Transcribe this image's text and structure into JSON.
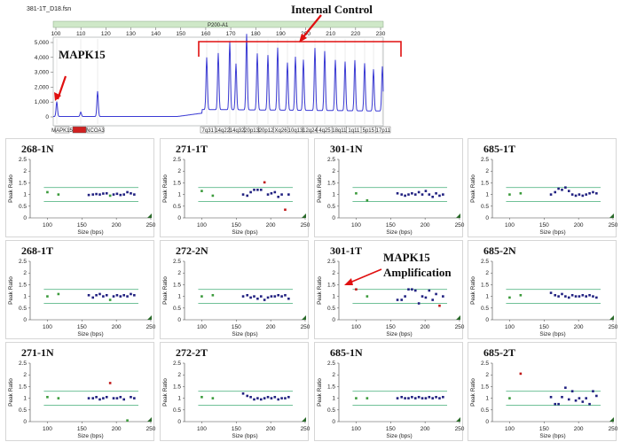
{
  "electropherogram": {
    "file_label": "381-1T_D18.fsn",
    "ruler_label": "P200-A1",
    "ruler_ticks": [
      "100",
      "110",
      "120",
      "130",
      "140",
      "150",
      "160",
      "170",
      "180",
      "190",
      "200",
      "210",
      "220",
      "230"
    ],
    "y_ticks": [
      "5,000",
      "4,000",
      "3,000",
      "2,000",
      "1,000",
      "0"
    ],
    "y_values": [
      5000,
      4000,
      3000,
      2000,
      1000,
      0
    ],
    "probe_labels_left": [
      "MAPK15",
      "",
      "NCOA3"
    ],
    "probe_labels_right": [
      "7q31",
      "14q22",
      "14q32",
      "20p13",
      "20p12",
      "Xq26",
      "10q13",
      "12q24",
      "4q25",
      "18q11",
      "1q11",
      "5p15",
      "17p11"
    ],
    "annotation_mapk15": "MAPK15",
    "annotation_internal": "Internal Control",
    "colors": {
      "trace": "#3b3bd4",
      "arrow": "#e01010",
      "ruler": "#cfe8c8",
      "probe_red": "#d02020"
    }
  },
  "mapk15_amplification_label_1": "MAPK15",
  "mapk15_amplification_label_2": "Amplification",
  "chart_data": [
    {
      "type": "scatter",
      "title": "268-1N",
      "xlabel": "Size (bps)",
      "ylabel": "Peak Ratio",
      "xlim": [
        75,
        250
      ],
      "ylim": [
        0,
        2.5
      ],
      "x_ticks": [
        "100",
        "150",
        "200",
        "250"
      ],
      "y_ticks": [
        "0",
        "0.5",
        "1",
        "1.5",
        "2",
        "2.5"
      ],
      "ref_lines": [
        0.7,
        1.3
      ],
      "points": [
        [
          100,
          1.1
        ],
        [
          116,
          1.0
        ],
        [
          160,
          0.98
        ],
        [
          166,
          1.0
        ],
        [
          171,
          1.02
        ],
        [
          176,
          1.0
        ],
        [
          181,
          1.04
        ],
        [
          186,
          1.05
        ],
        [
          191,
          0.95
        ],
        [
          196,
          1.0
        ],
        [
          201,
          1.03
        ],
        [
          206,
          0.98
        ],
        [
          211,
          1.0
        ],
        [
          216,
          1.1
        ],
        [
          221,
          1.05
        ],
        [
          226,
          1.0
        ]
      ],
      "red_points": [],
      "green_points": [
        [
          100,
          1.1
        ],
        [
          116,
          1.0
        ],
        [
          191,
          0.95
        ]
      ]
    },
    {
      "type": "scatter",
      "title": "271-1T",
      "xlabel": "Size (bps)",
      "ylabel": "Peak Ratio",
      "xlim": [
        75,
        250
      ],
      "ylim": [
        0,
        2.5
      ],
      "x_ticks": [
        "100",
        "150",
        "200",
        "250"
      ],
      "y_ticks": [
        "0",
        "0.5",
        "1",
        "1.5",
        "2",
        "2.5"
      ],
      "ref_lines": [
        0.7,
        1.3
      ],
      "points": [
        [
          100,
          1.15
        ],
        [
          116,
          0.95
        ],
        [
          160,
          1.0
        ],
        [
          166,
          0.95
        ],
        [
          171,
          1.1
        ],
        [
          176,
          1.2
        ],
        [
          181,
          1.2
        ],
        [
          186,
          1.2
        ],
        [
          191,
          1.52
        ],
        [
          196,
          1.0
        ],
        [
          201,
          1.05
        ],
        [
          206,
          1.1
        ],
        [
          211,
          0.9
        ],
        [
          216,
          1.0
        ],
        [
          221,
          0.35
        ],
        [
          226,
          1.0
        ]
      ],
      "red_points": [
        [
          191,
          1.52
        ],
        [
          221,
          0.35
        ]
      ],
      "green_points": [
        [
          100,
          1.15
        ],
        [
          116,
          0.95
        ]
      ]
    },
    {
      "type": "scatter",
      "title": "301-1N",
      "xlabel": "Size (bps)",
      "ylabel": "Peak Ratio",
      "xlim": [
        75,
        250
      ],
      "ylim": [
        0,
        2.5
      ],
      "x_ticks": [
        "100",
        "150",
        "200",
        "250"
      ],
      "y_ticks": [
        "0",
        "0.5",
        "1",
        "1.5",
        "2",
        "2.5"
      ],
      "ref_lines": [
        0.7,
        1.3
      ],
      "points": [
        [
          100,
          1.05
        ],
        [
          116,
          0.75
        ],
        [
          160,
          1.05
        ],
        [
          166,
          1.0
        ],
        [
          171,
          0.95
        ],
        [
          176,
          1.0
        ],
        [
          181,
          1.05
        ],
        [
          186,
          1.0
        ],
        [
          191,
          1.1
        ],
        [
          196,
          1.0
        ],
        [
          201,
          1.15
        ],
        [
          206,
          1.0
        ],
        [
          211,
          0.9
        ],
        [
          216,
          1.05
        ],
        [
          221,
          0.95
        ],
        [
          226,
          1.0
        ]
      ],
      "red_points": [],
      "green_points": [
        [
          100,
          1.05
        ],
        [
          116,
          0.75
        ]
      ]
    },
    {
      "type": "scatter",
      "title": "685-1T",
      "xlabel": "Size (bps)",
      "ylabel": "Peak Ratio",
      "xlim": [
        75,
        250
      ],
      "ylim": [
        0,
        2.5
      ],
      "x_ticks": [
        "100",
        "150",
        "200",
        "250"
      ],
      "y_ticks": [
        "0",
        "0.5",
        "1",
        "1.5",
        "2",
        "2.5"
      ],
      "ref_lines": [
        0.7,
        1.3
      ],
      "points": [
        [
          100,
          1.0
        ],
        [
          116,
          1.05
        ],
        [
          160,
          1.0
        ],
        [
          166,
          1.1
        ],
        [
          171,
          1.25
        ],
        [
          176,
          1.2
        ],
        [
          181,
          1.3
        ],
        [
          186,
          1.15
        ],
        [
          191,
          1.0
        ],
        [
          196,
          0.95
        ],
        [
          201,
          1.0
        ],
        [
          206,
          0.95
        ],
        [
          211,
          1.0
        ],
        [
          216,
          1.05
        ],
        [
          221,
          1.1
        ],
        [
          226,
          1.05
        ]
      ],
      "red_points": [],
      "green_points": [
        [
          100,
          1.0
        ],
        [
          116,
          1.05
        ]
      ]
    },
    {
      "type": "scatter",
      "title": "268-1T",
      "xlabel": "Size (bps)",
      "ylabel": "Peak Ratio",
      "xlim": [
        75,
        250
      ],
      "ylim": [
        0,
        2.5
      ],
      "x_ticks": [
        "100",
        "150",
        "200",
        "250"
      ],
      "y_ticks": [
        "0",
        "0.5",
        "1",
        "1.5",
        "2",
        "2.5"
      ],
      "ref_lines": [
        0.7,
        1.3
      ],
      "points": [
        [
          100,
          1.0
        ],
        [
          116,
          1.1
        ],
        [
          160,
          1.05
        ],
        [
          166,
          0.95
        ],
        [
          171,
          1.05
        ],
        [
          176,
          1.1
        ],
        [
          181,
          1.0
        ],
        [
          186,
          1.05
        ],
        [
          191,
          0.85
        ],
        [
          196,
          1.0
        ],
        [
          201,
          1.05
        ],
        [
          206,
          1.0
        ],
        [
          211,
          1.05
        ],
        [
          216,
          1.0
        ],
        [
          221,
          1.1
        ],
        [
          226,
          1.05
        ]
      ],
      "red_points": [],
      "green_points": [
        [
          100,
          1.0
        ],
        [
          116,
          1.1
        ],
        [
          191,
          0.85
        ]
      ]
    },
    {
      "type": "scatter",
      "title": "272-2N",
      "xlabel": "Size (bps)",
      "ylabel": "Peak Ratio",
      "xlim": [
        75,
        250
      ],
      "ylim": [
        0,
        2.5
      ],
      "x_ticks": [
        "100",
        "150",
        "200",
        "250"
      ],
      "y_ticks": [
        "0",
        "0.5",
        "1",
        "1.5",
        "2",
        "2.5"
      ],
      "ref_lines": [
        0.7,
        1.3
      ],
      "points": [
        [
          100,
          1.0
        ],
        [
          116,
          1.05
        ],
        [
          160,
          1.0
        ],
        [
          166,
          1.05
        ],
        [
          171,
          0.95
        ],
        [
          176,
          1.0
        ],
        [
          181,
          0.9
        ],
        [
          186,
          1.0
        ],
        [
          191,
          0.85
        ],
        [
          196,
          0.95
        ],
        [
          201,
          1.0
        ],
        [
          206,
          1.0
        ],
        [
          211,
          1.05
        ],
        [
          216,
          1.0
        ],
        [
          221,
          1.05
        ],
        [
          226,
          0.9
        ]
      ],
      "red_points": [],
      "green_points": [
        [
          100,
          1.0
        ],
        [
          116,
          1.05
        ]
      ]
    },
    {
      "type": "scatter",
      "title": "301-1T",
      "xlabel": "Size (bps)",
      "ylabel": "Peak Ratio",
      "xlim": [
        75,
        250
      ],
      "ylim": [
        0,
        2.5
      ],
      "x_ticks": [
        "100",
        "150",
        "200",
        "250"
      ],
      "y_ticks": [
        "0",
        "0.5",
        "1",
        "1.5",
        "2",
        "2.5"
      ],
      "ref_lines": [
        0.7,
        1.3
      ],
      "points": [
        [
          100,
          1.3
        ],
        [
          116,
          1.0
        ],
        [
          160,
          0.85
        ],
        [
          166,
          0.85
        ],
        [
          171,
          1.0
        ],
        [
          176,
          1.3
        ],
        [
          181,
          1.3
        ],
        [
          186,
          1.25
        ],
        [
          191,
          0.7
        ],
        [
          196,
          1.0
        ],
        [
          201,
          0.95
        ],
        [
          206,
          1.25
        ],
        [
          211,
          0.85
        ],
        [
          216,
          1.1
        ],
        [
          221,
          0.6
        ],
        [
          226,
          1.0
        ]
      ],
      "red_points": [
        [
          100,
          1.3
        ],
        [
          221,
          0.6
        ]
      ],
      "green_points": [
        [
          116,
          1.0
        ]
      ]
    },
    {
      "type": "scatter",
      "title": "685-2N",
      "xlabel": "Size (bps)",
      "ylabel": "Peak Ratio",
      "xlim": [
        75,
        250
      ],
      "ylim": [
        0,
        2.5
      ],
      "x_ticks": [
        "100",
        "150",
        "200",
        "250"
      ],
      "y_ticks": [
        "0",
        "0.5",
        "1",
        "1.5",
        "2",
        "2.5"
      ],
      "ref_lines": [
        0.7,
        1.3
      ],
      "points": [
        [
          100,
          0.95
        ],
        [
          116,
          1.05
        ],
        [
          160,
          1.15
        ],
        [
          166,
          1.05
        ],
        [
          171,
          1.0
        ],
        [
          176,
          1.1
        ],
        [
          181,
          1.0
        ],
        [
          186,
          0.95
        ],
        [
          191,
          1.05
        ],
        [
          196,
          1.0
        ],
        [
          201,
          1.0
        ],
        [
          206,
          1.05
        ],
        [
          211,
          1.0
        ],
        [
          216,
          1.05
        ],
        [
          221,
          1.0
        ],
        [
          226,
          0.95
        ]
      ],
      "red_points": [],
      "green_points": [
        [
          100,
          0.95
        ],
        [
          116,
          1.05
        ]
      ]
    },
    {
      "type": "scatter",
      "title": "271-1N",
      "xlabel": "Size (bps)",
      "ylabel": "Peak Ratio",
      "xlim": [
        75,
        250
      ],
      "ylim": [
        0,
        2.5
      ],
      "x_ticks": [
        "100",
        "150",
        "200",
        "250"
      ],
      "y_ticks": [
        "0",
        "0.5",
        "1",
        "1.5",
        "2",
        "2.5"
      ],
      "ref_lines": [
        0.7,
        1.3
      ],
      "points": [
        [
          100,
          1.05
        ],
        [
          116,
          1.0
        ],
        [
          160,
          1.0
        ],
        [
          166,
          1.0
        ],
        [
          171,
          1.05
        ],
        [
          176,
          0.95
        ],
        [
          181,
          1.0
        ],
        [
          186,
          1.05
        ],
        [
          191,
          1.65
        ],
        [
          196,
          1.0
        ],
        [
          201,
          1.0
        ],
        [
          206,
          1.05
        ],
        [
          211,
          0.95
        ],
        [
          216,
          0.05
        ],
        [
          221,
          1.05
        ],
        [
          226,
          1.0
        ]
      ],
      "red_points": [
        [
          191,
          1.65
        ]
      ],
      "green_points": [
        [
          100,
          1.05
        ],
        [
          116,
          1.0
        ],
        [
          216,
          0.05
        ]
      ]
    },
    {
      "type": "scatter",
      "title": "272-2T",
      "xlabel": "Size (bps)",
      "ylabel": "Peak Ratio",
      "xlim": [
        75,
        250
      ],
      "ylim": [
        0,
        2.5
      ],
      "x_ticks": [
        "100",
        "150",
        "200",
        "250"
      ],
      "y_ticks": [
        "0",
        "0.5",
        "1",
        "1.5",
        "2",
        "2.5"
      ],
      "ref_lines": [
        0.7,
        1.3
      ],
      "points": [
        [
          100,
          1.05
        ],
        [
          116,
          1.0
        ],
        [
          160,
          1.2
        ],
        [
          166,
          1.1
        ],
        [
          171,
          1.05
        ],
        [
          176,
          0.95
        ],
        [
          181,
          1.0
        ],
        [
          186,
          0.95
        ],
        [
          191,
          1.0
        ],
        [
          196,
          1.05
        ],
        [
          201,
          1.0
        ],
        [
          206,
          1.05
        ],
        [
          211,
          0.95
        ],
        [
          216,
          1.0
        ],
        [
          221,
          1.0
        ],
        [
          226,
          1.05
        ]
      ],
      "red_points": [],
      "green_points": [
        [
          100,
          1.05
        ],
        [
          116,
          1.0
        ]
      ]
    },
    {
      "type": "scatter",
      "title": "685-1N",
      "xlabel": "Size (bps)",
      "ylabel": "Peak Ratio",
      "xlim": [
        75,
        250
      ],
      "ylim": [
        0,
        2.5
      ],
      "x_ticks": [
        "100",
        "150",
        "200",
        "250"
      ],
      "y_ticks": [
        "0",
        "0.5",
        "1",
        "1.5",
        "2",
        "2.5"
      ],
      "ref_lines": [
        0.7,
        1.3
      ],
      "points": [
        [
          100,
          1.0
        ],
        [
          116,
          1.0
        ],
        [
          160,
          1.0
        ],
        [
          166,
          1.05
        ],
        [
          171,
          1.0
        ],
        [
          176,
          1.0
        ],
        [
          181,
          1.05
        ],
        [
          186,
          1.0
        ],
        [
          191,
          1.05
        ],
        [
          196,
          1.0
        ],
        [
          201,
          1.0
        ],
        [
          206,
          1.05
        ],
        [
          211,
          1.0
        ],
        [
          216,
          1.05
        ],
        [
          221,
          1.0
        ],
        [
          226,
          1.05
        ]
      ],
      "red_points": [],
      "green_points": [
        [
          100,
          1.0
        ],
        [
          116,
          1.0
        ]
      ]
    },
    {
      "type": "scatter",
      "title": "685-2T",
      "xlabel": "Size (bps)",
      "ylabel": "Peak Ratio",
      "xlim": [
        75,
        250
      ],
      "ylim": [
        0,
        2.5
      ],
      "x_ticks": [
        "100",
        "150",
        "200",
        "250"
      ],
      "y_ticks": [
        "0",
        "0.5",
        "1",
        "1.5",
        "2",
        "2.5"
      ],
      "ref_lines": [
        0.7,
        1.3
      ],
      "points": [
        [
          100,
          1.0
        ],
        [
          116,
          2.05
        ],
        [
          160,
          1.05
        ],
        [
          166,
          0.75
        ],
        [
          171,
          0.75
        ],
        [
          176,
          1.05
        ],
        [
          181,
          1.45
        ],
        [
          186,
          0.95
        ],
        [
          191,
          1.3
        ],
        [
          196,
          0.9
        ],
        [
          201,
          1.0
        ],
        [
          206,
          0.85
        ],
        [
          211,
          1.0
        ],
        [
          216,
          0.75
        ],
        [
          221,
          1.3
        ],
        [
          226,
          1.1
        ]
      ],
      "red_points": [
        [
          116,
          2.05
        ]
      ],
      "green_points": [
        [
          100,
          1.0
        ]
      ]
    }
  ]
}
